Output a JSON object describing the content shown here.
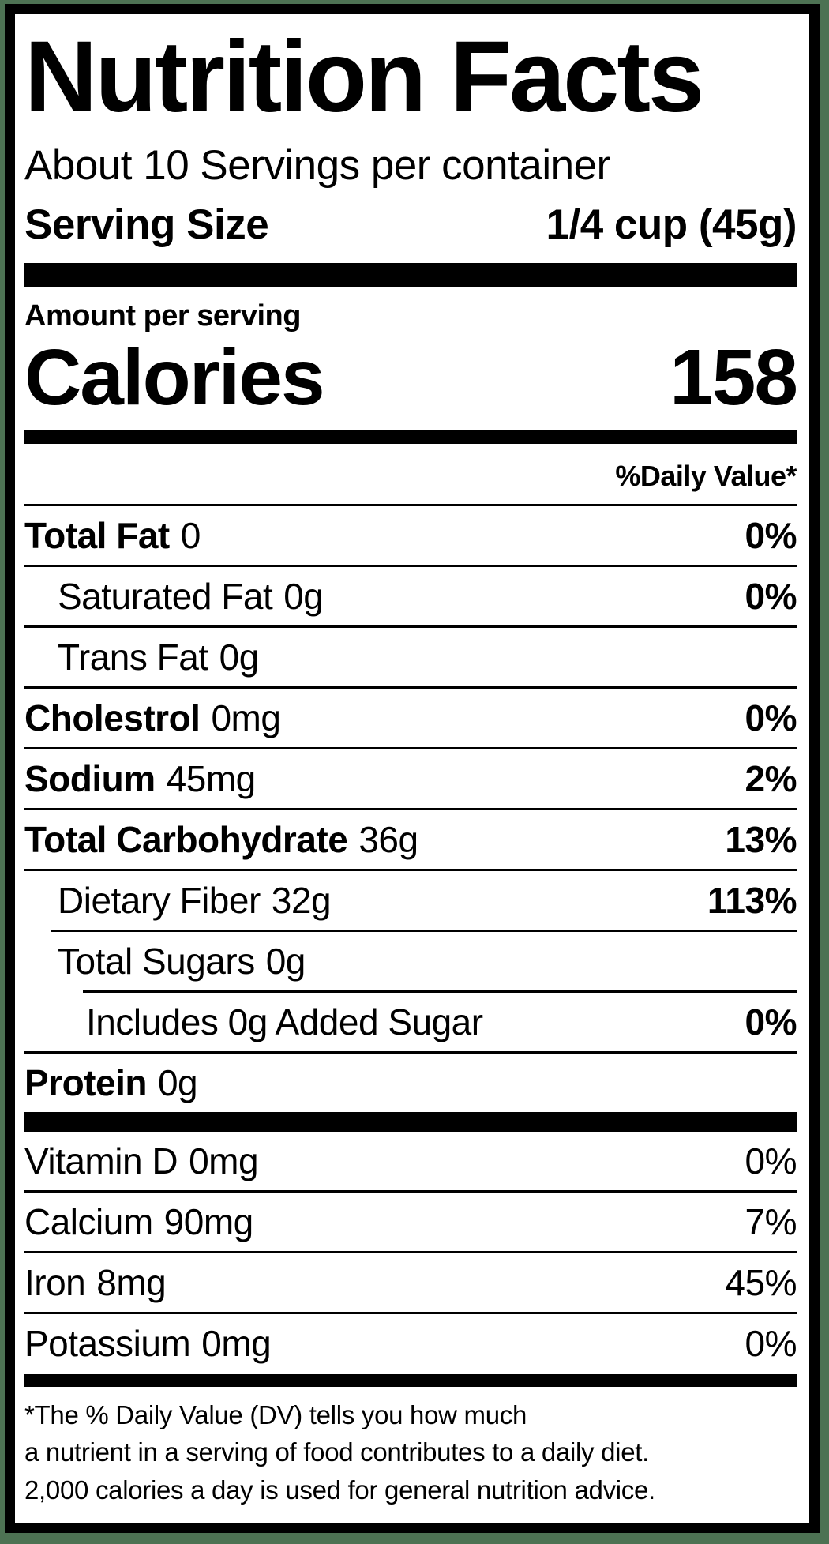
{
  "header": {
    "title": "Nutrition Facts",
    "servings_per_container": "About 10 Servings per container",
    "serving_size_label": "Serving Size",
    "serving_size_value": "1/4 cup (45g)"
  },
  "calories_section": {
    "amount_per_serving_label": "Amount per serving",
    "calories_label": "Calories",
    "calories_value": "158"
  },
  "daily_value_header": "%Daily Value*",
  "nutrients": [
    {
      "label": "Total Fat",
      "amount": "0",
      "dv": "0%",
      "indent": 0,
      "label_bold": true,
      "dv_bold": true,
      "rule_indent": 0
    },
    {
      "label": "Saturated Fat",
      "amount": "0g",
      "dv": "0%",
      "indent": 1,
      "label_bold": false,
      "dv_bold": true,
      "rule_indent": 0
    },
    {
      "label": "Trans Fat",
      "amount": "0g",
      "dv": "",
      "indent": 1,
      "label_bold": false,
      "dv_bold": false,
      "rule_indent": 0
    },
    {
      "label": "Cholestrol",
      "amount": "0mg",
      "dv": "0%",
      "indent": 0,
      "label_bold": true,
      "dv_bold": true,
      "rule_indent": 0
    },
    {
      "label": "Sodium",
      "amount": "45mg",
      "dv": "2%",
      "indent": 0,
      "label_bold": true,
      "dv_bold": true,
      "rule_indent": 0
    },
    {
      "label": "Total Carbohydrate",
      "amount": "36g",
      "dv": "13%",
      "indent": 0,
      "label_bold": true,
      "dv_bold": true,
      "rule_indent": 0
    },
    {
      "label": "Dietary Fiber",
      "amount": "32g",
      "dv": "113%",
      "indent": 1,
      "label_bold": false,
      "dv_bold": true,
      "rule_indent": 0
    },
    {
      "label": "Total Sugars",
      "amount": "0g",
      "dv": "",
      "indent": 1,
      "label_bold": false,
      "dv_bold": false,
      "rule_indent": 34
    },
    {
      "label": "Includes 0g Added Sugar",
      "amount": "",
      "dv": "0%",
      "indent": 2,
      "label_bold": false,
      "dv_bold": true,
      "rule_indent": 74
    },
    {
      "label": "Protein",
      "amount": "0g",
      "dv": "",
      "indent": 0,
      "label_bold": true,
      "dv_bold": false,
      "rule_indent": 0
    }
  ],
  "vitamins": [
    {
      "label": "Vitamin D",
      "amount": "0mg",
      "dv": "0%"
    },
    {
      "label": "Calcium",
      "amount": "90mg",
      "dv": "7%"
    },
    {
      "label": "Iron",
      "amount": "8mg",
      "dv": "45%"
    },
    {
      "label": "Potassium",
      "amount": "0mg",
      "dv": "0%"
    }
  ],
  "footnote_lines": [
    "*The % Daily Value (DV) tells you how much",
    "a nutrient in a serving of food contributes to a daily diet.",
    "2,000 calories a day is used for general nutrition advice."
  ],
  "colors": {
    "frame_green": "#4d7253",
    "ink": "#000000"
  }
}
